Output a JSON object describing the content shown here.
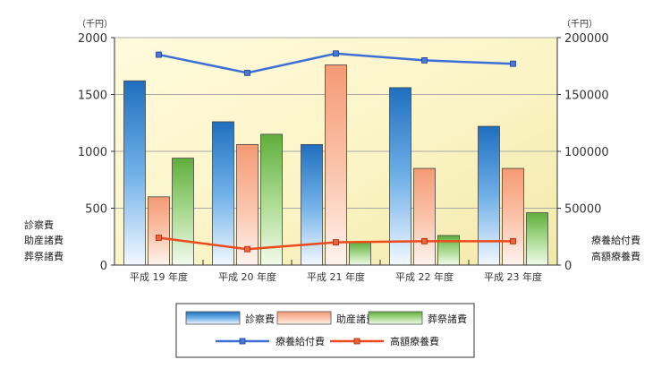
{
  "chart_data": {
    "type": "bar",
    "categories": [
      "平成 19 年度",
      "平成 20 年度",
      "平成 21 年度",
      "平成 22 年度",
      "平成 23 年度"
    ],
    "left_axis": {
      "unit": "（千円）",
      "ylim": [
        0,
        2000
      ],
      "ticks": [
        "0",
        "500",
        "1000",
        "1500",
        "2000"
      ]
    },
    "right_axis": {
      "unit": "（千円）",
      "ylim": [
        0,
        200000
      ],
      "ticks": [
        "0",
        "50000",
        "100000",
        "150000",
        "200000"
      ]
    },
    "series": [
      {
        "name": "診察費",
        "type": "bar",
        "axis": "left",
        "values": [
          1620,
          1260,
          1060,
          1560,
          1220
        ],
        "color": "#2f86d0"
      },
      {
        "name": "助産諸費",
        "type": "bar",
        "axis": "left",
        "values": [
          600,
          1060,
          1760,
          850,
          850
        ],
        "color": "#f39a78"
      },
      {
        "name": "葬祭諸費",
        "type": "bar",
        "axis": "left",
        "values": [
          940,
          1150,
          200,
          260,
          460
        ],
        "color": "#6cb84a"
      },
      {
        "name": "療養給付費",
        "type": "line",
        "axis": "right",
        "values": [
          185000,
          169000,
          186000,
          180000,
          177000
        ],
        "color": "#3c6fd6"
      },
      {
        "name": "高額療養費",
        "type": "line",
        "axis": "right",
        "values": [
          24000,
          14000,
          20000,
          21000,
          21000
        ],
        "color": "#ec4a1c"
      }
    ],
    "side_labels_left": [
      "診察費",
      "助産諸費",
      "葬祭諸費"
    ],
    "side_labels_right": [
      "療養給付費",
      "高額療養費"
    ],
    "grid": true
  }
}
